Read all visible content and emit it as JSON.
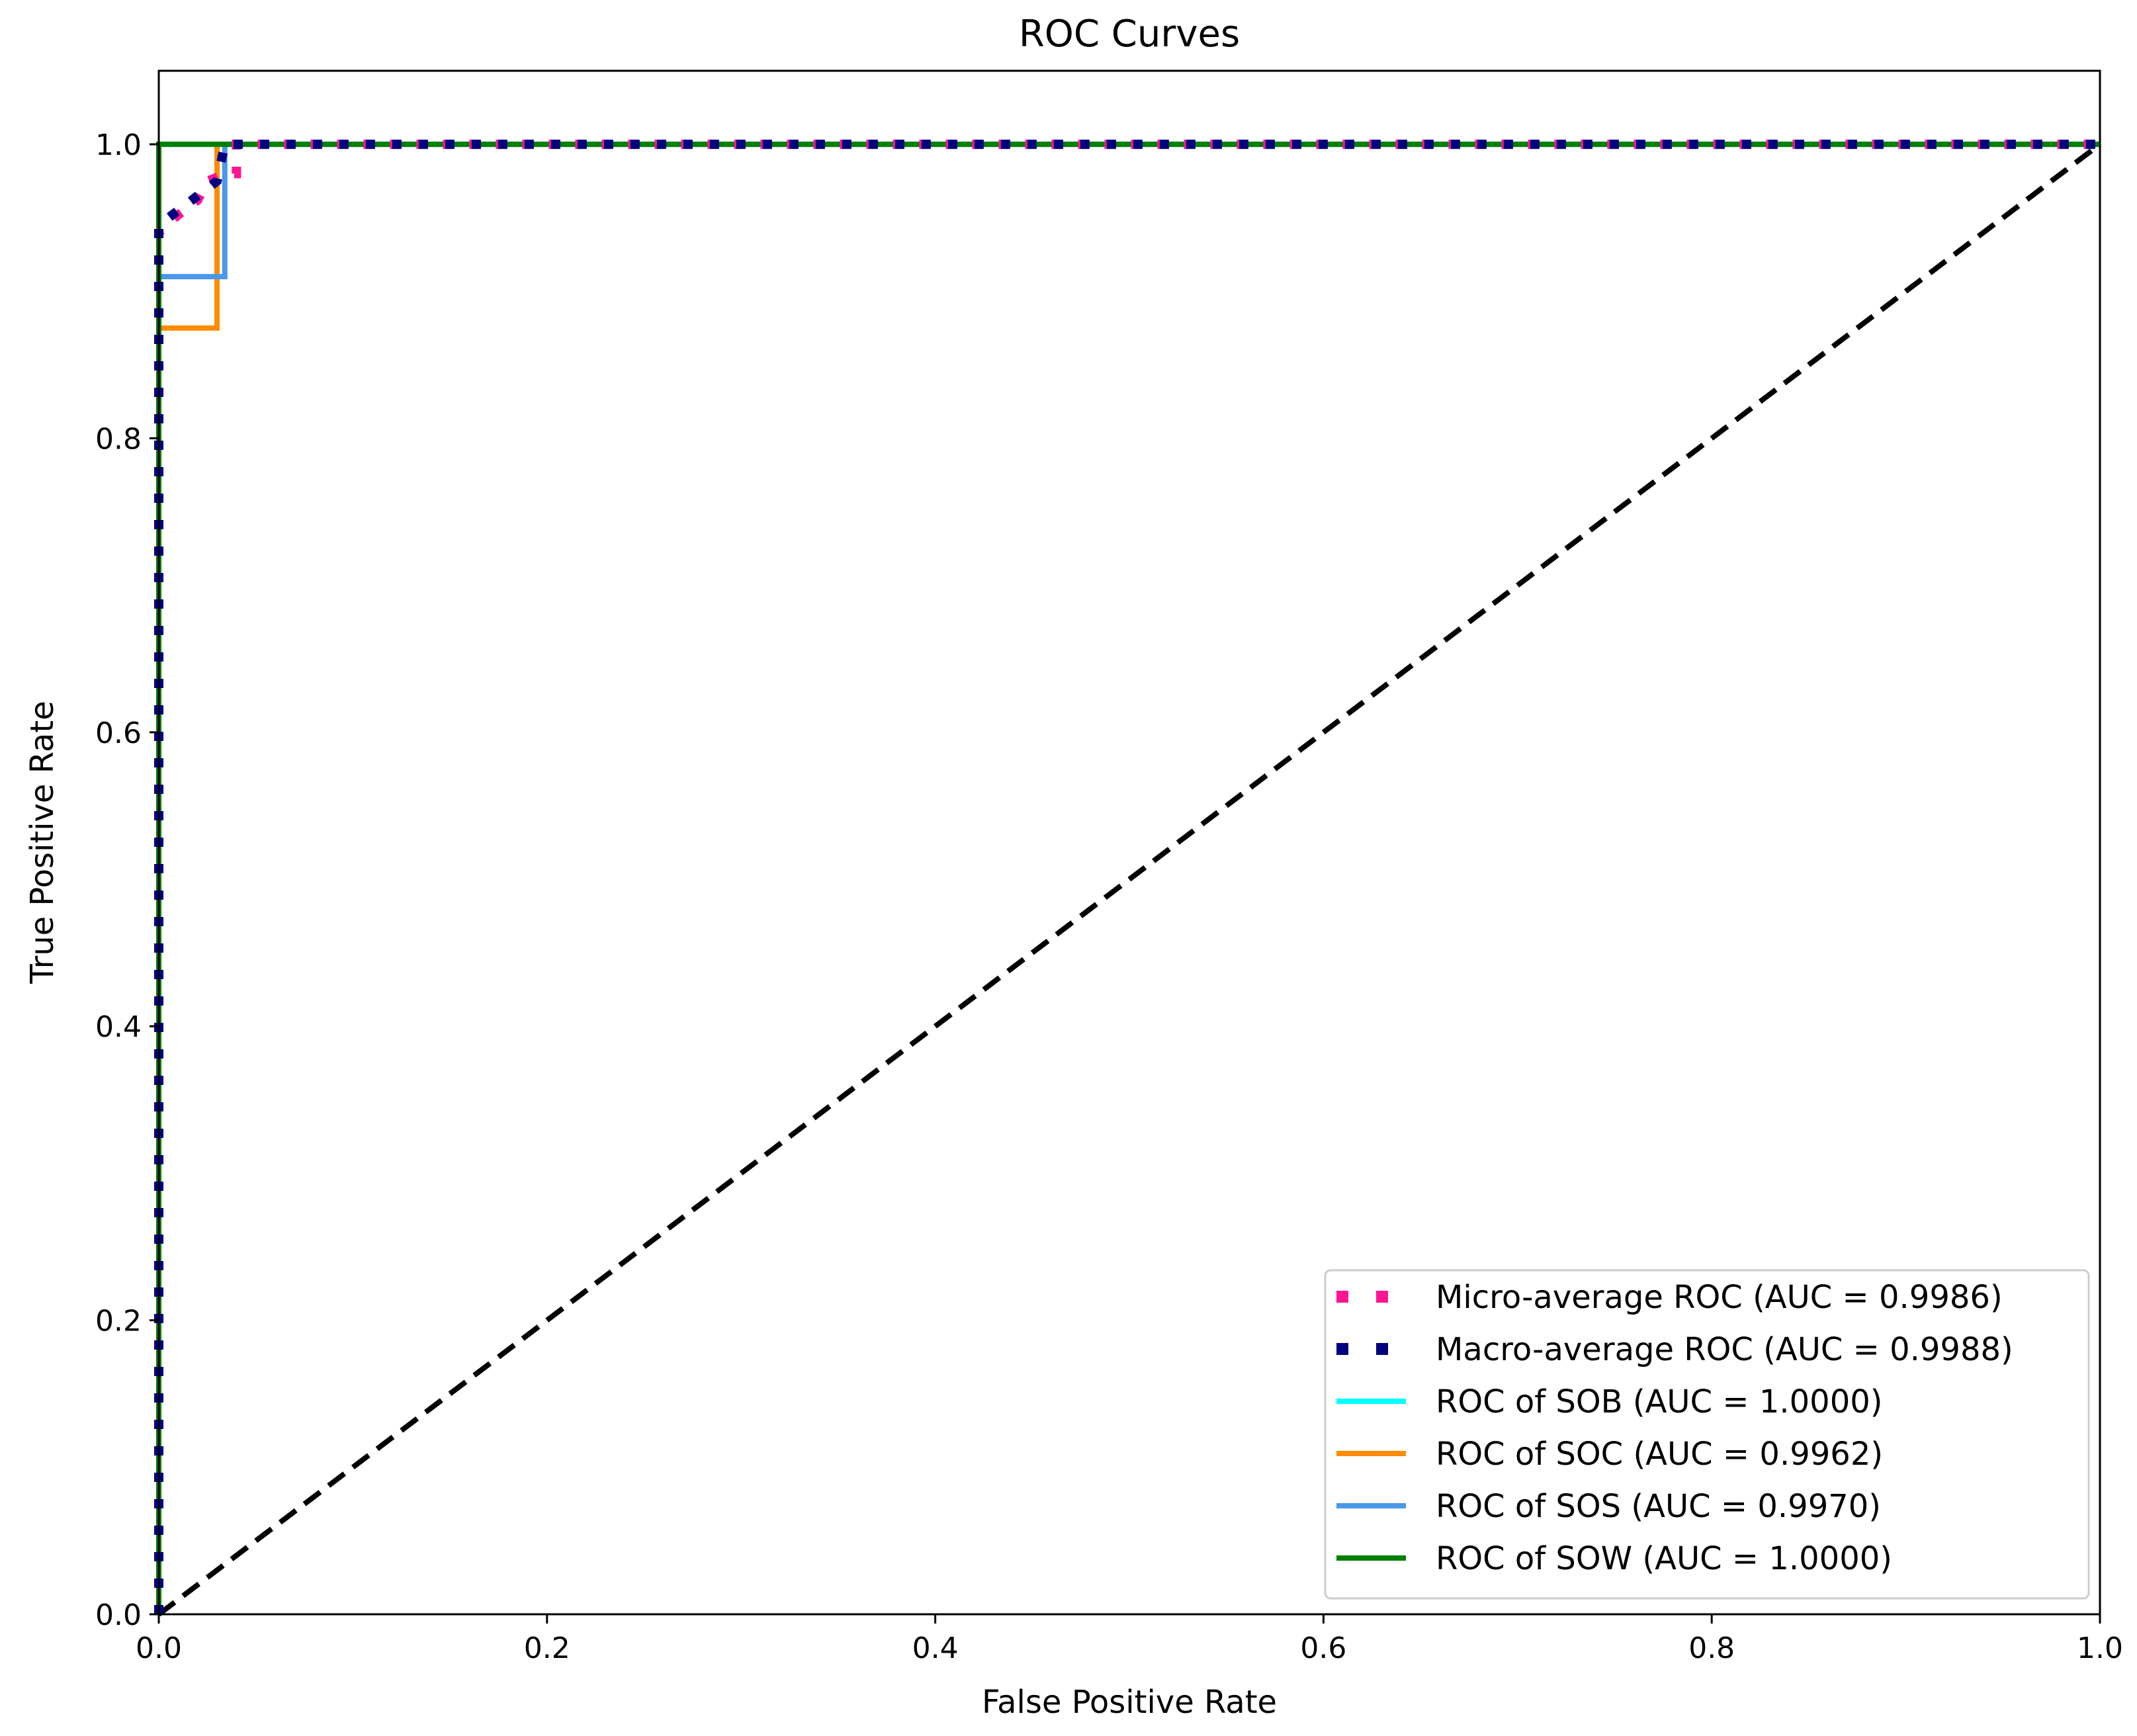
{
  "chart_data": {
    "type": "line",
    "title": "ROC Curves",
    "xlabel": "False Positive Rate",
    "ylabel": "True Positive Rate",
    "xlim": [
      0.0,
      1.0
    ],
    "ylim": [
      0.0,
      1.05
    ],
    "xticks": [
      0.0,
      0.2,
      0.4,
      0.6,
      0.8,
      1.0
    ],
    "yticks": [
      0.0,
      0.2,
      0.4,
      0.6,
      0.8,
      1.0
    ],
    "xtick_labels": [
      "0.0",
      "0.2",
      "0.4",
      "0.6",
      "0.8",
      "1.0"
    ],
    "ytick_labels": [
      "0.0",
      "0.2",
      "0.4",
      "0.6",
      "0.8",
      "1.0"
    ],
    "grid": false,
    "legend_position": "lower-right",
    "series": [
      {
        "name": "Micro-average ROC (AUC = 0.9986)",
        "color": "#ff1493",
        "style": "dotted",
        "x": [
          0.0,
          0.0,
          0.01,
          0.02,
          0.025,
          0.035,
          0.04,
          0.04,
          1.0
        ],
        "y": [
          0.0,
          0.94,
          0.952,
          0.962,
          0.975,
          0.98,
          0.98,
          1.0,
          1.0
        ]
      },
      {
        "name": "Macro-average ROC (AUC = 0.9988)",
        "color": "#000080",
        "style": "dotted",
        "x": [
          0.0,
          0.0,
          0.01,
          0.02,
          0.03,
          0.034,
          1.0
        ],
        "y": [
          0.0,
          0.945,
          0.955,
          0.965,
          0.975,
          1.0,
          1.0
        ]
      },
      {
        "name": "ROC of SOB (AUC = 1.0000)",
        "color": "#00ffff",
        "style": "solid",
        "x": [
          0.0,
          0.0,
          1.0
        ],
        "y": [
          0.0,
          1.0,
          1.0
        ]
      },
      {
        "name": "ROC of SOC (AUC = 0.9962)",
        "color": "#ff8c00",
        "style": "solid",
        "x": [
          0.0,
          0.0,
          0.03,
          0.03,
          1.0
        ],
        "y": [
          0.0,
          0.875,
          0.875,
          1.0,
          1.0
        ]
      },
      {
        "name": "ROC of SOS (AUC = 0.9970)",
        "color": "#4a97eb",
        "style": "solid",
        "x": [
          0.0,
          0.0,
          0.034,
          0.034,
          1.0
        ],
        "y": [
          0.0,
          0.91,
          0.91,
          1.0,
          1.0
        ]
      },
      {
        "name": "ROC of SOW (AUC = 1.0000)",
        "color": "#008000",
        "style": "solid",
        "x": [
          0.0,
          0.0,
          1.0
        ],
        "y": [
          0.0,
          1.0,
          1.0
        ]
      }
    ],
    "reference_line": {
      "color": "#000000",
      "style": "dashed",
      "x": [
        0.0,
        1.0
      ],
      "y": [
        0.0,
        1.0
      ]
    }
  }
}
